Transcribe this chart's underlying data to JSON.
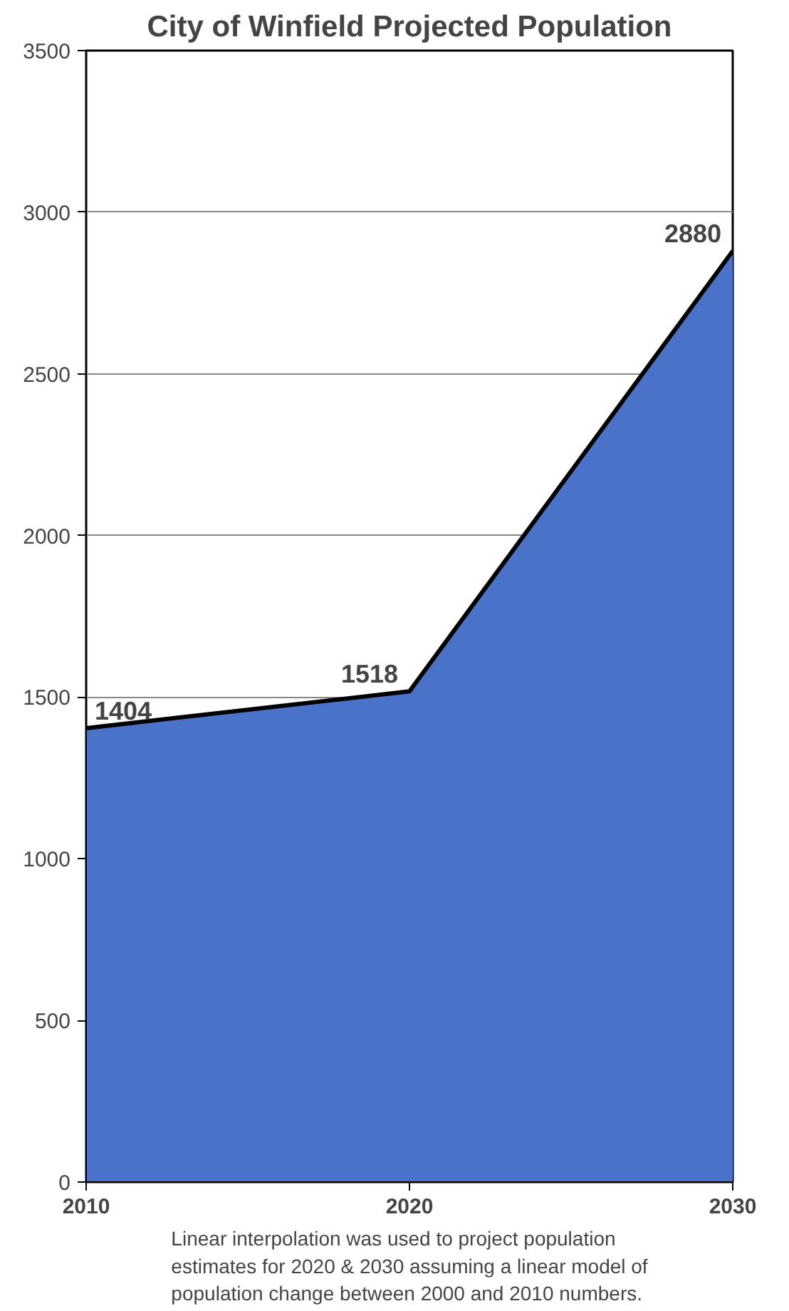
{
  "chart_data": {
    "type": "area",
    "title": "City of Winfield Projected Population",
    "x": [
      2010,
      2020,
      2030
    ],
    "series": [
      {
        "color": "#4a72c8",
        "values": [
          1404,
          1518,
          2880
        ]
      }
    ],
    "xlim": [
      2010,
      2030
    ],
    "xticks": [
      2010,
      2020,
      2030
    ],
    "ylim": [
      0,
      3500
    ],
    "yticks": [
      0,
      500,
      1000,
      1500,
      2000,
      2500,
      3000,
      3500
    ],
    "grid": "y",
    "data_labels": true,
    "annotations": [
      "Linear interpolation was used to project population estimates for 2020 & 2030 assuming a linear model of population change between 2000 and 2010 numbers."
    ]
  }
}
